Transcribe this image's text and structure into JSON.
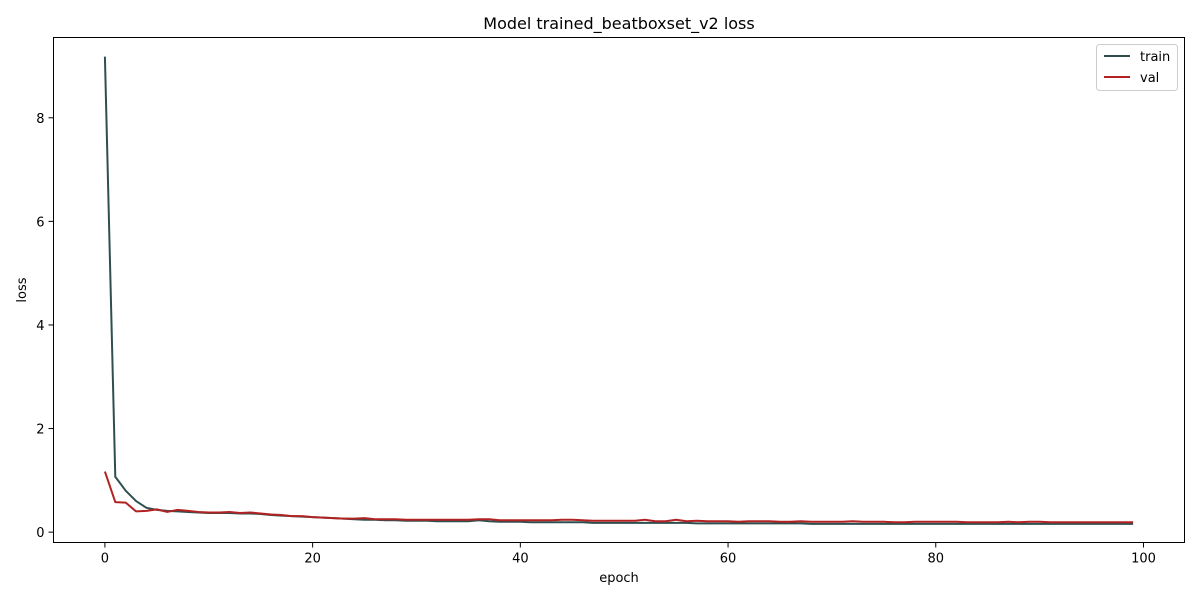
{
  "chart_data": {
    "type": "line",
    "title": "Model trained_beatboxset_v2 loss",
    "xlabel": "epoch",
    "ylabel": "loss",
    "xlim": [
      -4.95,
      103.95
    ],
    "ylim": [
      -0.2,
      9.55
    ],
    "xticks": [
      0,
      20,
      40,
      60,
      80,
      100
    ],
    "yticks": [
      0,
      2,
      4,
      6,
      8
    ],
    "grid": false,
    "legend_position": "top-right",
    "x": [
      0,
      1,
      2,
      3,
      4,
      5,
      6,
      7,
      8,
      9,
      10,
      11,
      12,
      13,
      14,
      15,
      16,
      17,
      18,
      19,
      20,
      21,
      22,
      23,
      24,
      25,
      26,
      27,
      28,
      29,
      30,
      31,
      32,
      33,
      34,
      35,
      36,
      37,
      38,
      39,
      40,
      41,
      42,
      43,
      44,
      45,
      46,
      47,
      48,
      49,
      50,
      51,
      52,
      53,
      54,
      55,
      56,
      57,
      58,
      59,
      60,
      61,
      62,
      63,
      64,
      65,
      66,
      67,
      68,
      69,
      70,
      71,
      72,
      73,
      74,
      75,
      76,
      77,
      78,
      79,
      80,
      81,
      82,
      83,
      84,
      85,
      86,
      87,
      88,
      89,
      90,
      91,
      92,
      93,
      94,
      95,
      96,
      97,
      98,
      99
    ],
    "series": [
      {
        "name": "train",
        "color": "#2f4f4f",
        "values": [
          9.18,
          1.07,
          0.8,
          0.6,
          0.47,
          0.43,
          0.41,
          0.4,
          0.39,
          0.38,
          0.37,
          0.37,
          0.37,
          0.36,
          0.36,
          0.35,
          0.33,
          0.32,
          0.31,
          0.3,
          0.29,
          0.28,
          0.27,
          0.26,
          0.25,
          0.24,
          0.24,
          0.23,
          0.23,
          0.22,
          0.22,
          0.22,
          0.21,
          0.21,
          0.21,
          0.21,
          0.23,
          0.21,
          0.2,
          0.2,
          0.2,
          0.19,
          0.19,
          0.19,
          0.19,
          0.19,
          0.19,
          0.18,
          0.18,
          0.18,
          0.18,
          0.18,
          0.18,
          0.18,
          0.18,
          0.18,
          0.18,
          0.17,
          0.17,
          0.17,
          0.17,
          0.17,
          0.17,
          0.17,
          0.17,
          0.17,
          0.17,
          0.17,
          0.16,
          0.16,
          0.16,
          0.16,
          0.16,
          0.16,
          0.16,
          0.16,
          0.16,
          0.16,
          0.16,
          0.16,
          0.16,
          0.16,
          0.16,
          0.16,
          0.16,
          0.16,
          0.16,
          0.16,
          0.16,
          0.16,
          0.16,
          0.16,
          0.16,
          0.16,
          0.16,
          0.16,
          0.16,
          0.16,
          0.16,
          0.16
        ]
      },
      {
        "name": "val",
        "color": "#b22222",
        "values": [
          1.17,
          0.58,
          0.57,
          0.4,
          0.41,
          0.44,
          0.39,
          0.43,
          0.41,
          0.39,
          0.38,
          0.38,
          0.39,
          0.37,
          0.38,
          0.36,
          0.34,
          0.33,
          0.31,
          0.31,
          0.29,
          0.28,
          0.27,
          0.26,
          0.26,
          0.27,
          0.25,
          0.25,
          0.25,
          0.24,
          0.24,
          0.24,
          0.24,
          0.24,
          0.24,
          0.24,
          0.25,
          0.25,
          0.23,
          0.23,
          0.23,
          0.23,
          0.23,
          0.23,
          0.24,
          0.24,
          0.23,
          0.22,
          0.22,
          0.22,
          0.22,
          0.22,
          0.24,
          0.21,
          0.21,
          0.24,
          0.21,
          0.22,
          0.21,
          0.21,
          0.21,
          0.2,
          0.21,
          0.21,
          0.21,
          0.2,
          0.2,
          0.21,
          0.2,
          0.2,
          0.2,
          0.2,
          0.21,
          0.2,
          0.2,
          0.2,
          0.19,
          0.19,
          0.2,
          0.2,
          0.2,
          0.2,
          0.2,
          0.19,
          0.19,
          0.19,
          0.19,
          0.2,
          0.19,
          0.2,
          0.2,
          0.19,
          0.19,
          0.19,
          0.19,
          0.19,
          0.19,
          0.19,
          0.19,
          0.19
        ]
      }
    ]
  }
}
